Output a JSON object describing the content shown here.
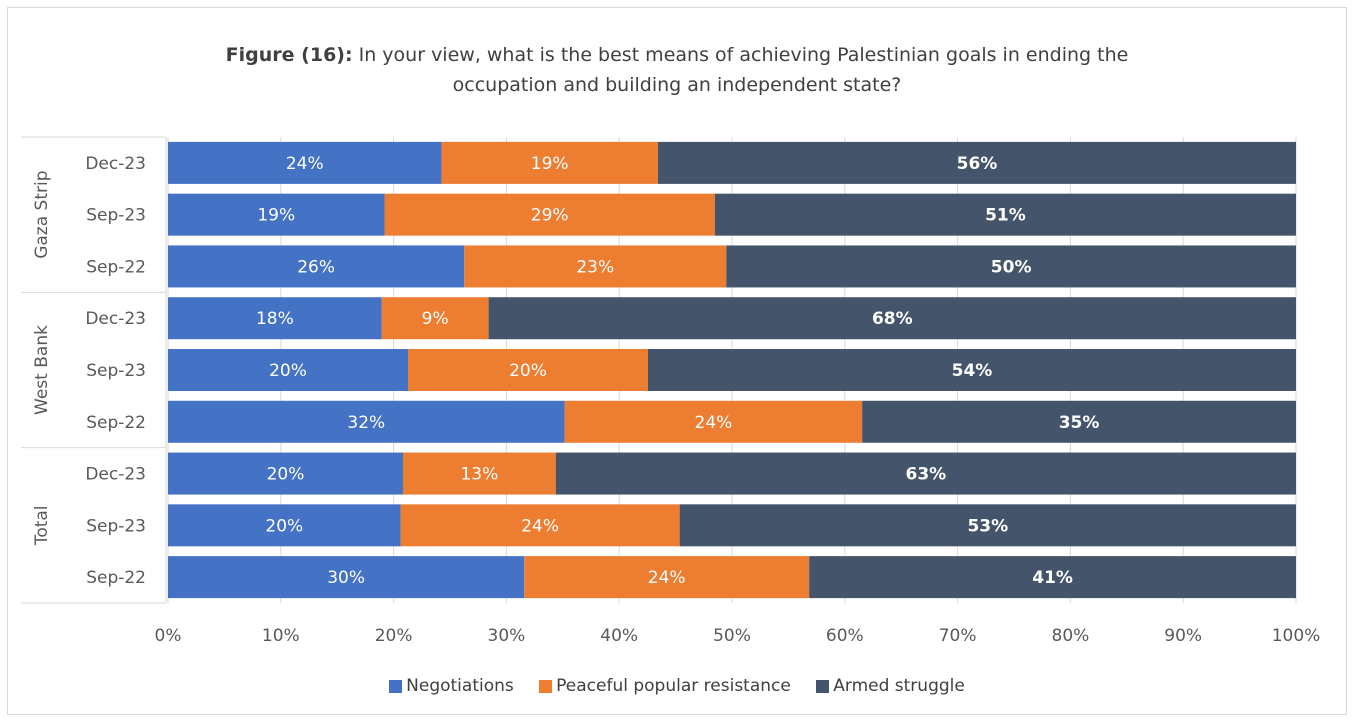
{
  "title": {
    "bold": "Figure (16):",
    "line1": " In your view, what is the best means of achieving Palestinian goals in ending the",
    "line2": "occupation and building an independent state?"
  },
  "chart_data": {
    "type": "bar",
    "orientation": "horizontal",
    "stacked": "percent",
    "groups": [
      {
        "name": "Gaza Strip",
        "rows": [
          "Dec-23",
          "Sep-23",
          "Sep-22"
        ]
      },
      {
        "name": "West Bank",
        "rows": [
          "Dec-23",
          "Sep-23",
          "Sep-22"
        ]
      },
      {
        "name": "Total",
        "rows": [
          "Dec-23",
          "Sep-23",
          "Sep-22"
        ]
      }
    ],
    "categories": [
      "Gaza Strip Dec-23",
      "Gaza Strip Sep-23",
      "Gaza Strip Sep-22",
      "West Bank Dec-23",
      "West Bank Sep-23",
      "West Bank Sep-22",
      "Total Dec-23",
      "Total Sep-23",
      "Total Sep-22"
    ],
    "series": [
      {
        "name": "Negotiations",
        "color": "#4472c4",
        "values": [
          24,
          19,
          26,
          18,
          20,
          32,
          20,
          20,
          30
        ],
        "label_bold": false
      },
      {
        "name": "Peaceful popular resistance",
        "color": "#ed7d31",
        "values": [
          19,
          29,
          23,
          9,
          20,
          24,
          13,
          24,
          24
        ],
        "label_bold": false
      },
      {
        "name": "Armed struggle",
        "color": "#44546a",
        "values": [
          56,
          51,
          50,
          68,
          54,
          35,
          63,
          53,
          41
        ],
        "label_bold": true
      }
    ],
    "xlim": [
      0,
      100
    ],
    "xticks": [
      "0%",
      "10%",
      "20%",
      "30%",
      "40%",
      "50%",
      "60%",
      "70%",
      "80%",
      "90%",
      "100%"
    ],
    "grid": true,
    "legend_position": "bottom"
  }
}
